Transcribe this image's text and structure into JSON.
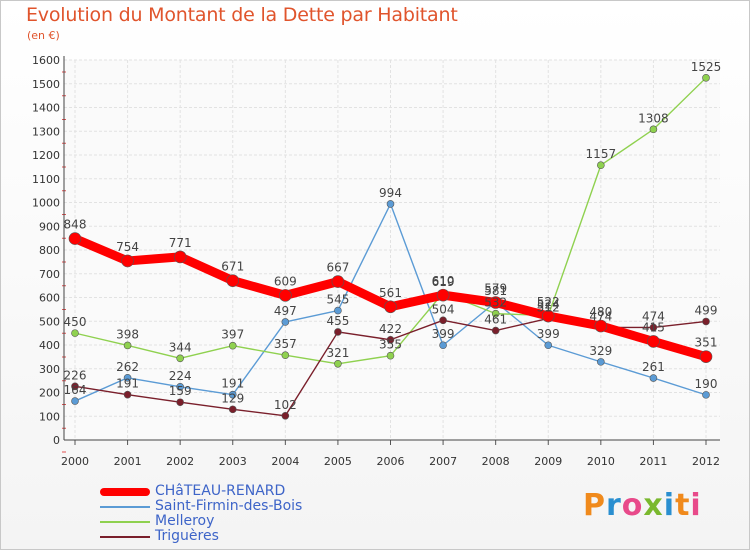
{
  "chart_data": {
    "type": "line",
    "title": "Evolution du Montant de la Dette par Habitant",
    "subtitle": "(en €)",
    "x": [
      "2000",
      "2001",
      "2002",
      "2003",
      "2004",
      "2005",
      "2006",
      "2007",
      "2008",
      "2009",
      "2010",
      "2011",
      "2012"
    ],
    "yticks": [
      "0",
      "100",
      "200",
      "300",
      "400",
      "500",
      "600",
      "700",
      "800",
      "900",
      "1000",
      "1100",
      "1200",
      "1300",
      "1400",
      "1500",
      "1600"
    ],
    "ylim": [
      0,
      1600
    ],
    "grid": true,
    "legend_position": "bottom-left",
    "series": [
      {
        "name": "Saint-Firmin-des-Bois",
        "color": "#5b9bd5",
        "values": [
          164,
          262,
          224,
          191,
          497,
          545,
          994,
          399,
          581,
          399,
          329,
          261,
          190
        ]
      },
      {
        "name": "Melleroy",
        "color": "#8fd14f",
        "values": [
          450,
          398,
          344,
          397,
          357,
          321,
          355,
          619,
          532,
          524,
          1157,
          1308,
          1525
        ]
      },
      {
        "name": "Triguères",
        "color": "#7a1f2b",
        "values": [
          226,
          191,
          159,
          129,
          102,
          455,
          422,
          504,
          461,
          512,
          474,
          474,
          499
        ]
      },
      {
        "name": "CHâTEAU-RENARD",
        "color": "#ff0000",
        "values": [
          848,
          754,
          771,
          671,
          609,
          667,
          561,
          610,
          579,
          522,
          480,
          415,
          351
        ]
      }
    ]
  },
  "legend": [
    {
      "name": "CHâTEAU-RENARD",
      "color": "#ff0000"
    },
    {
      "name": "Saint-Firmin-des-Bois",
      "color": "#5b9bd5"
    },
    {
      "name": "Melleroy",
      "color": "#8fd14f"
    },
    {
      "name": "Triguères",
      "color": "#7a1f2b"
    }
  ],
  "logo": {
    "text": "Proxiti"
  }
}
